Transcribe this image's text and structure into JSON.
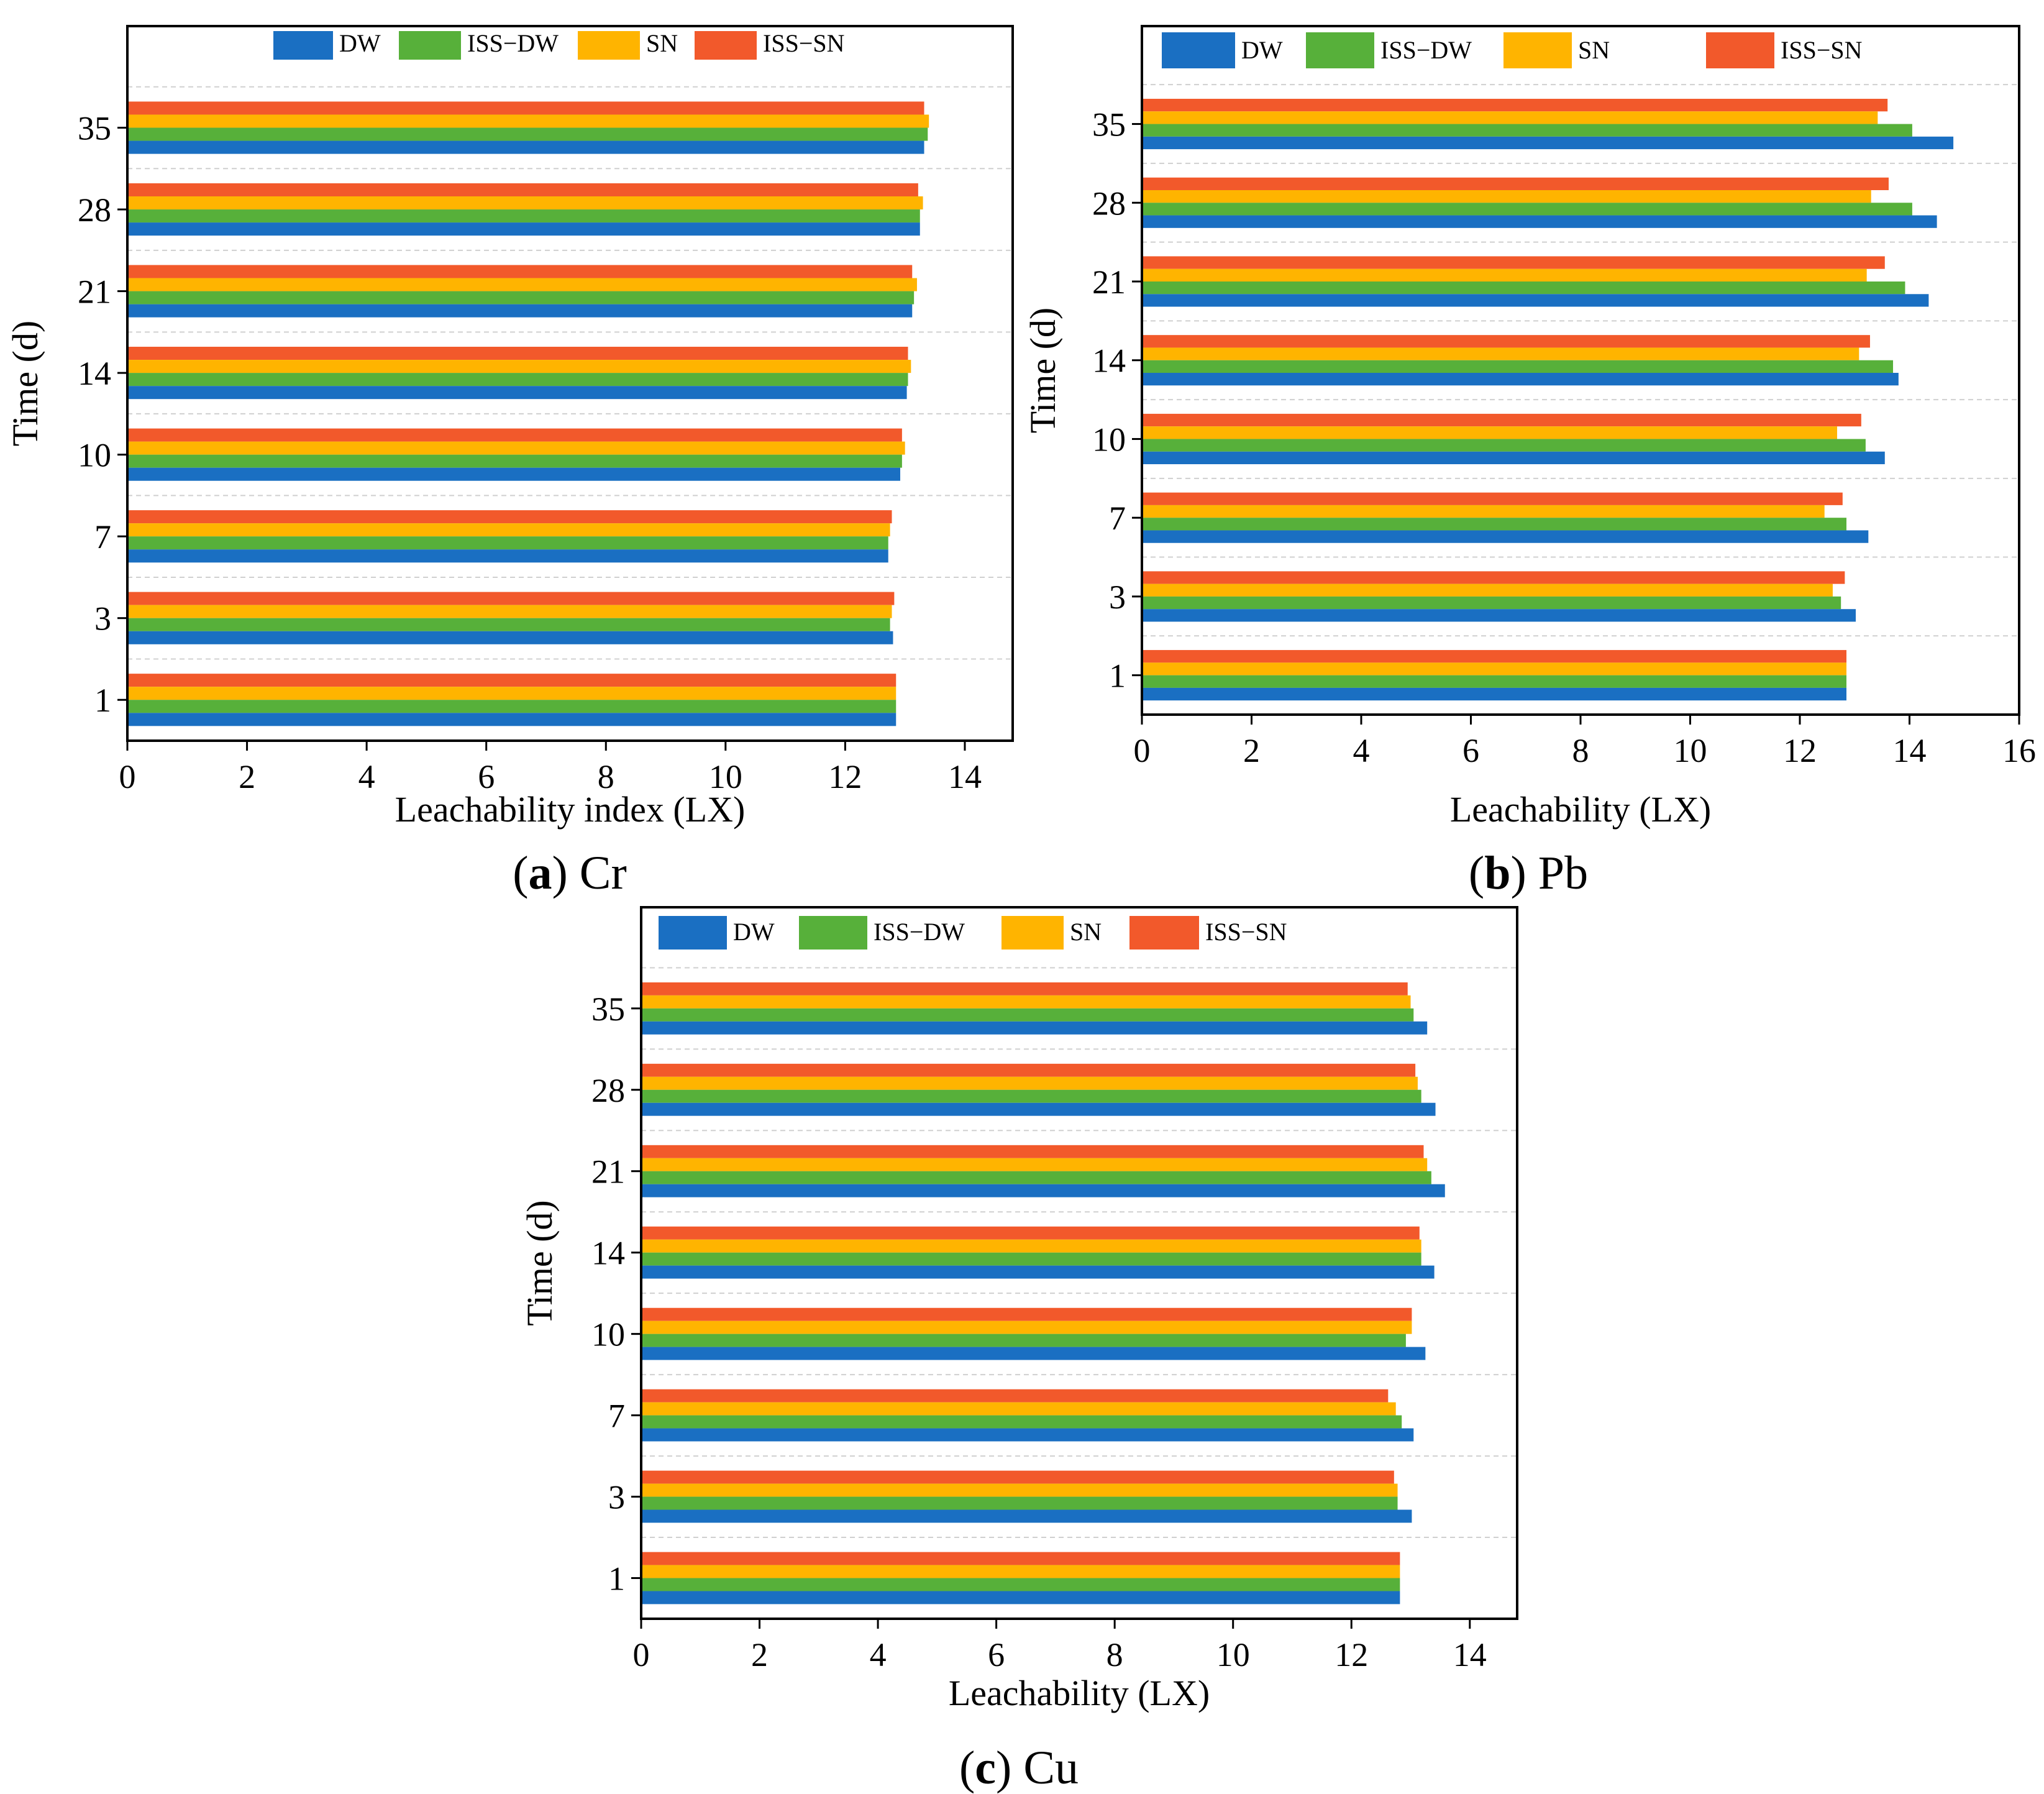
{
  "series_colors": {
    "DW": "#1a6fc2",
    "ISS−DW": "#57b03a",
    "SN": "#ffb400",
    "ISS−SN": "#f2592b"
  },
  "chart_data": [
    {
      "type": "bar",
      "orientation": "horizontal",
      "element": "Cr",
      "caption": {
        "letter": "a",
        "element": "Cr"
      },
      "categories": [
        "1",
        "3",
        "7",
        "10",
        "14",
        "21",
        "28",
        "35"
      ],
      "xlabel": "Leachability index (LX)",
      "ylabel": "Time (d)",
      "xlim": [
        0,
        14.8
      ],
      "xticks": [
        0,
        2,
        4,
        6,
        8,
        10,
        12,
        14
      ],
      "legend_position": "top",
      "series": [
        {
          "name": "DW",
          "values": [
            12.85,
            12.8,
            12.72,
            12.92,
            13.03,
            13.12,
            13.25,
            13.32
          ]
        },
        {
          "name": "ISS−DW",
          "values": [
            12.85,
            12.75,
            12.72,
            12.95,
            13.05,
            13.15,
            13.25,
            13.38
          ]
        },
        {
          "name": "SN",
          "values": [
            12.85,
            12.78,
            12.75,
            13.0,
            13.1,
            13.2,
            13.3,
            13.4
          ]
        },
        {
          "name": "ISS−SN",
          "values": [
            12.85,
            12.82,
            12.78,
            12.95,
            13.05,
            13.12,
            13.22,
            13.32
          ]
        }
      ]
    },
    {
      "type": "bar",
      "orientation": "horizontal",
      "element": "Pb",
      "caption": {
        "letter": "b",
        "element": "Pb"
      },
      "categories": [
        "1",
        "3",
        "7",
        "10",
        "14",
        "21",
        "28",
        "35"
      ],
      "xlabel": "Leachability (LX)",
      "ylabel": "Time (d)",
      "xlim": [
        0,
        16
      ],
      "xticks": [
        0,
        2,
        4,
        6,
        8,
        10,
        12,
        14,
        16
      ],
      "legend_position": "top",
      "series": [
        {
          "name": "DW",
          "values": [
            12.85,
            13.02,
            13.25,
            13.55,
            13.8,
            14.35,
            14.5,
            14.8
          ]
        },
        {
          "name": "ISS−DW",
          "values": [
            12.85,
            12.75,
            12.85,
            13.2,
            13.7,
            13.92,
            14.05,
            14.05
          ]
        },
        {
          "name": "SN",
          "values": [
            12.85,
            12.6,
            12.45,
            12.68,
            13.08,
            13.22,
            13.3,
            13.42
          ]
        },
        {
          "name": "ISS−SN",
          "values": [
            12.85,
            12.82,
            12.78,
            13.12,
            13.28,
            13.55,
            13.62,
            13.6
          ]
        }
      ]
    },
    {
      "type": "bar",
      "orientation": "horizontal",
      "element": "Cu",
      "caption": {
        "letter": "c",
        "element": "Cu"
      },
      "categories": [
        "1",
        "3",
        "7",
        "10",
        "14",
        "21",
        "28",
        "35"
      ],
      "xlabel": "Leachability (LX)",
      "ylabel": "Time (d)",
      "xlim": [
        0,
        14.8
      ],
      "xticks": [
        0,
        2,
        4,
        6,
        8,
        10,
        12,
        14
      ],
      "legend_position": "top",
      "series": [
        {
          "name": "DW",
          "values": [
            12.82,
            13.02,
            13.05,
            13.25,
            13.4,
            13.58,
            13.42,
            13.28
          ]
        },
        {
          "name": "ISS−DW",
          "values": [
            12.82,
            12.78,
            12.85,
            12.92,
            13.18,
            13.35,
            13.18,
            13.05
          ]
        },
        {
          "name": "SN",
          "values": [
            12.82,
            12.78,
            12.75,
            13.02,
            13.18,
            13.28,
            13.12,
            13.0
          ]
        },
        {
          "name": "ISS−SN",
          "values": [
            12.82,
            12.72,
            12.62,
            13.02,
            13.15,
            13.22,
            13.08,
            12.95
          ]
        }
      ]
    }
  ]
}
